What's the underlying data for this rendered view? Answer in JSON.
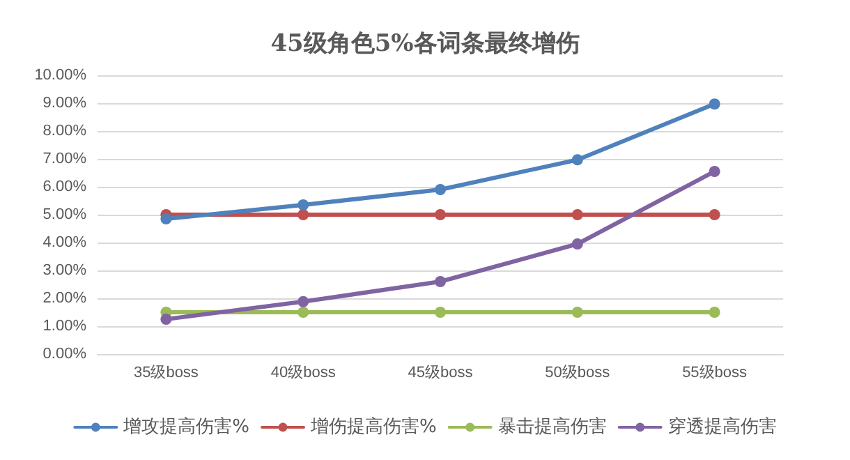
{
  "chart_data": {
    "type": "line",
    "title": "45级角色5%各词条最终增伤",
    "categories": [
      "35级boss",
      "40级boss",
      "45级boss",
      "50级boss",
      "55级boss"
    ],
    "series": [
      {
        "name": "增攻提高伤害%",
        "color": "#4f81bd",
        "values": [
          4.85,
          5.35,
          5.9,
          6.97,
          8.97
        ]
      },
      {
        "name": "增伤提高伤害%",
        "color": "#c0504d",
        "values": [
          5.0,
          5.0,
          5.0,
          5.0,
          5.0
        ]
      },
      {
        "name": "暴击提高伤害",
        "color": "#9bbb59",
        "values": [
          1.5,
          1.5,
          1.5,
          1.5,
          1.5
        ]
      },
      {
        "name": "穿透提高伤害",
        "color": "#8064a2",
        "values": [
          1.25,
          1.88,
          2.6,
          3.95,
          6.55
        ]
      }
    ],
    "ylim": [
      0,
      10
    ],
    "yticks": [
      {
        "value": 0,
        "label": "0.00%"
      },
      {
        "value": 1,
        "label": "1.00%"
      },
      {
        "value": 2,
        "label": "2.00%"
      },
      {
        "value": 3,
        "label": "3.00%"
      },
      {
        "value": 4,
        "label": "4.00%"
      },
      {
        "value": 5,
        "label": "5.00%"
      },
      {
        "value": 6,
        "label": "6.00%"
      },
      {
        "value": 7,
        "label": "7.00%"
      },
      {
        "value": 8,
        "label": "8.00%"
      },
      {
        "value": 9,
        "label": "9.00%"
      },
      {
        "value": 10,
        "label": "10.00%"
      }
    ],
    "grid": "y",
    "legend": "bottom",
    "marker": "circle",
    "line_style": "solid"
  }
}
